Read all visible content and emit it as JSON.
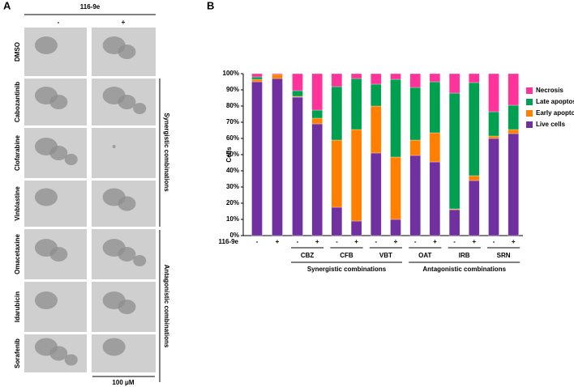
{
  "panel_a": {
    "label": "A",
    "header": "116-9e",
    "columns": [
      "-",
      "+"
    ],
    "rows": [
      "DMSO",
      "Cabozantinib",
      "Clofarabine",
      "Vinblastine",
      "Omacetaxine",
      "Idarubicin",
      "Sorafenib"
    ],
    "brackets": [
      "Synergistic combinations",
      "Antagonistic combinations"
    ],
    "scale_bar": "100 μM"
  },
  "chart_data": {
    "type": "stacked_bar",
    "panel_label": "B",
    "ylabel": "Cells",
    "row_label": "116-9e",
    "categories": [
      "-",
      "+",
      "-",
      "+",
      "-",
      "+",
      "-",
      "+",
      "-",
      "+",
      "-",
      "+",
      "-",
      "+"
    ],
    "groups": [
      "CBZ",
      "CFB",
      "VBT",
      "OAT",
      "IRB",
      "SRN"
    ],
    "supergroups": [
      "Synergistic combinations",
      "Antagonistic combinations"
    ],
    "ylim": [
      0,
      100
    ],
    "yticks": [
      {
        "value": 0,
        "label": "0%"
      },
      {
        "value": 10,
        "label": "10%"
      },
      {
        "value": 20,
        "label": "20%"
      },
      {
        "value": 30,
        "label": "30%"
      },
      {
        "value": 40,
        "label": "40%"
      },
      {
        "value": 50,
        "label": "50%"
      },
      {
        "value": 60,
        "label": "60%"
      },
      {
        "value": 70,
        "label": "70%"
      },
      {
        "value": 80,
        "label": "80%"
      },
      {
        "value": 90,
        "label": "90%"
      },
      {
        "value": 100,
        "label": "100%"
      }
    ],
    "series": [
      {
        "name": "Live cells",
        "color": "#7030a0",
        "values": [
          95,
          97,
          85.5,
          69,
          17.5,
          9,
          51,
          10,
          49.5,
          45.5,
          16,
          34,
          60,
          63
        ]
      },
      {
        "name": "Early apoptosis",
        "color": "#ff8000",
        "values": [
          1.5,
          2.5,
          0.5,
          3.5,
          41.5,
          56.5,
          29,
          38.5,
          9.5,
          18,
          0.5,
          3,
          1.5,
          2.5
        ]
      },
      {
        "name": "Late apoptosis",
        "color": "#00a050",
        "values": [
          1.5,
          0,
          3.5,
          5,
          33,
          31.5,
          13.5,
          48,
          32.5,
          31.5,
          71.5,
          57.5,
          15,
          15
        ]
      },
      {
        "name": "Necrosis",
        "color": "#ff3399",
        "values": [
          2,
          0.5,
          10.5,
          22.5,
          8,
          3,
          6.5,
          3.5,
          8.5,
          5,
          12,
          5.5,
          23.5,
          19.5
        ]
      }
    ]
  }
}
